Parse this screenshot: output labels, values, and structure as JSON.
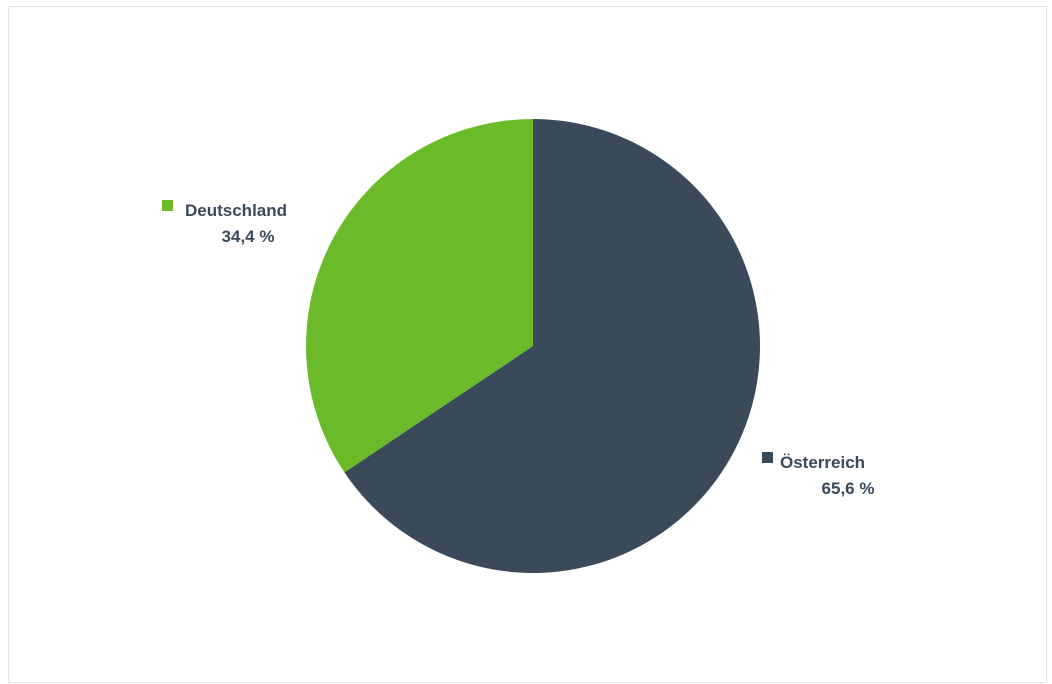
{
  "chart_data": {
    "type": "pie",
    "title": "",
    "start_angle_deg": 0,
    "direction": "clockwise",
    "slices": [
      {
        "name": "Österreich",
        "value": 65.6,
        "label": "65,6 %",
        "color": "#3a4a5a"
      },
      {
        "name": "Deutschland",
        "value": 34.4,
        "label": "34,4 %",
        "color": "#6aba2a"
      }
    ],
    "legend": "data labels beside slices",
    "label_color": "#3a4a5a"
  }
}
